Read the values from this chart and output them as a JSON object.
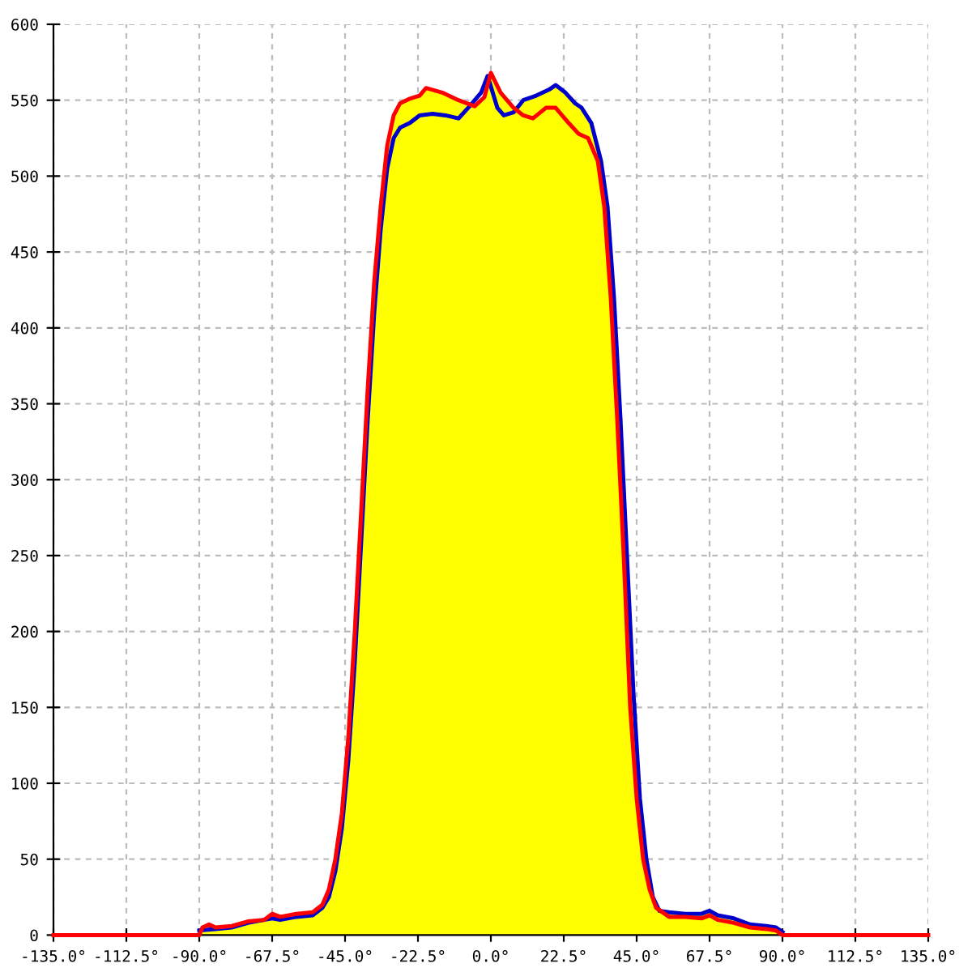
{
  "chart_data": {
    "type": "line",
    "xlim": [
      -135,
      135
    ],
    "xticks": [
      {
        "value": -135,
        "label": "-135.0°"
      },
      {
        "value": -112.5,
        "label": "-112.5°"
      },
      {
        "value": -90,
        "label": "-90.0°"
      },
      {
        "value": -67.5,
        "label": "-67.5°"
      },
      {
        "value": -45,
        "label": "-45.0°"
      },
      {
        "value": -22.5,
        "label": "-22.5°"
      },
      {
        "value": 0,
        "label": "0.0°"
      },
      {
        "value": 22.5,
        "label": "22.5°"
      },
      {
        "value": 45,
        "label": "45.0°"
      },
      {
        "value": 67.5,
        "label": "67.5°"
      },
      {
        "value": 90,
        "label": "90.0°"
      },
      {
        "value": 112.5,
        "label": "112.5°"
      },
      {
        "value": 135,
        "label": "135.0°"
      }
    ],
    "ylim": [
      0,
      600
    ],
    "yticks": [
      0,
      50,
      100,
      150,
      200,
      250,
      300,
      350,
      400,
      450,
      500,
      550,
      600
    ],
    "grid": true,
    "line_style": "solid",
    "series": [
      {
        "type": "area",
        "color": "#ffff00",
        "x": [
          -90,
          -87,
          -85,
          -80,
          -75,
          -70,
          -67.5,
          -65,
          -60,
          -55,
          -52,
          -50,
          -48,
          -46,
          -44,
          -42,
          -40,
          -38,
          -36,
          -34,
          -32,
          -30,
          -28,
          -25,
          -22,
          -20,
          -15,
          -10,
          -5,
          -2,
          0,
          3,
          7,
          10,
          14,
          18,
          20,
          23,
          26,
          28,
          31,
          34,
          36,
          38,
          40,
          42,
          44,
          46,
          48,
          50,
          52,
          55,
          60,
          65,
          67.5,
          70,
          75,
          80,
          85,
          88,
          90
        ],
        "values": [
          0,
          7,
          5,
          6,
          9,
          10,
          14,
          12,
          14,
          15,
          20,
          30,
          50,
          80,
          130,
          200,
          280,
          360,
          430,
          480,
          520,
          540,
          548,
          551,
          553,
          558,
          555,
          550,
          546,
          552,
          568,
          555,
          545,
          550,
          553,
          557,
          560,
          555,
          548,
          545,
          535,
          510,
          480,
          420,
          340,
          250,
          160,
          90,
          50,
          25,
          18,
          15,
          14,
          14,
          16,
          13,
          11,
          7,
          6,
          5,
          0
        ]
      },
      {
        "color": "#0000cc",
        "x": [
          -90,
          -85,
          -80,
          -75,
          -70,
          -67.5,
          -65,
          -60,
          -55,
          -52,
          -50,
          -48,
          -46,
          -44,
          -42,
          -40,
          -38,
          -36,
          -34,
          -32,
          -30,
          -28,
          -25,
          -22,
          -18,
          -14,
          -10,
          -7,
          -3,
          -1,
          2,
          4,
          7,
          10,
          14,
          18,
          20,
          23,
          26,
          28,
          31,
          34,
          36,
          38,
          40,
          42,
          44,
          46,
          48,
          50,
          52,
          55,
          60,
          65,
          67.5,
          70,
          75,
          80,
          85,
          88,
          90
        ],
        "values": [
          3,
          4,
          5,
          8,
          10,
          11,
          10,
          12,
          13,
          18,
          25,
          42,
          70,
          115,
          180,
          260,
          340,
          410,
          465,
          505,
          525,
          532,
          535,
          540,
          541,
          540,
          538,
          545,
          555,
          566,
          545,
          540,
          542,
          550,
          553,
          557,
          560,
          555,
          548,
          545,
          535,
          510,
          480,
          420,
          340,
          250,
          160,
          90,
          50,
          25,
          16,
          15,
          14,
          14,
          16,
          13,
          11,
          7,
          6,
          5,
          2
        ]
      },
      {
        "color": "#ff0000",
        "x": [
          -135,
          -90,
          -89,
          -87,
          -85,
          -80,
          -75,
          -70,
          -67.5,
          -65,
          -60,
          -55,
          -52,
          -50,
          -48,
          -46,
          -44,
          -42,
          -40,
          -38,
          -36,
          -34,
          -32,
          -30,
          -28,
          -25,
          -22,
          -20,
          -15,
          -10,
          -5,
          -2,
          0,
          3,
          7,
          10,
          13,
          17,
          20,
          24,
          27,
          30,
          33,
          35,
          37,
          39,
          41,
          43,
          45,
          47,
          49,
          51,
          55,
          60,
          65,
          67.5,
          70,
          75,
          80,
          85,
          88,
          90,
          135
        ],
        "values": [
          0,
          0,
          5,
          7,
          5,
          6,
          9,
          10,
          14,
          12,
          14,
          15,
          20,
          30,
          50,
          80,
          130,
          200,
          280,
          360,
          430,
          480,
          520,
          540,
          548,
          551,
          553,
          558,
          555,
          550,
          546,
          552,
          568,
          555,
          545,
          540,
          538,
          545,
          545,
          535,
          528,
          525,
          510,
          480,
          420,
          340,
          250,
          150,
          90,
          50,
          30,
          18,
          12,
          12,
          11,
          13,
          10,
          8,
          5,
          4,
          3,
          0,
          0
        ]
      }
    ]
  }
}
